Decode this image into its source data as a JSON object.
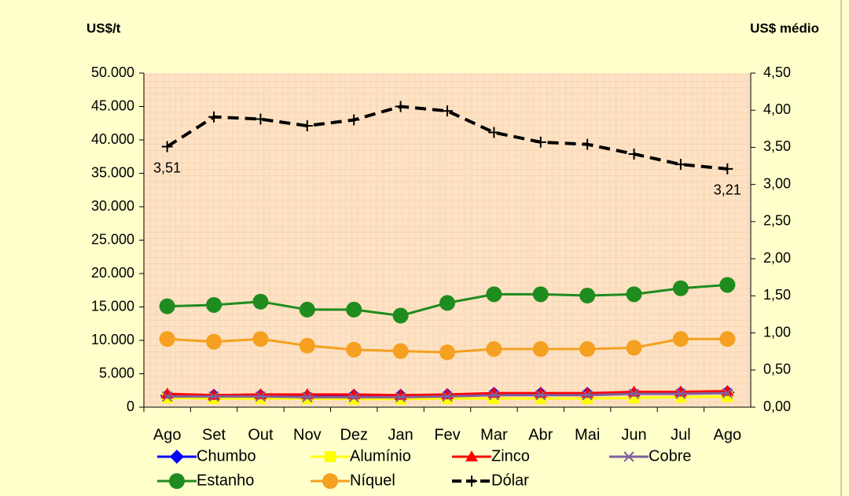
{
  "chart_data": {
    "type": "line",
    "ylabel": "US$/t",
    "y2label": "US$ médio",
    "categories": [
      "Ago",
      "Set",
      "Out",
      "Nov",
      "Dez",
      "Jan",
      "Fev",
      "Mar",
      "Abr",
      "Mai",
      "Jun",
      "Jul",
      "Ago"
    ],
    "ylim": [
      0,
      50000
    ],
    "yticks": [
      0,
      {
        "value": 5000,
        "label": "5.000"
      },
      {
        "value": 10000,
        "label": "10.000"
      },
      {
        "value": 15000,
        "label": "15.000"
      },
      {
        "value": 20000,
        "label": "20.000"
      },
      {
        "value": 25000,
        "label": "25.000"
      },
      {
        "value": 30000,
        "label": "30.000"
      },
      {
        "value": 35000,
        "label": "35.000"
      },
      {
        "value": 40000,
        "label": "40.000"
      },
      {
        "value": 45000,
        "label": "45.000"
      },
      {
        "value": 50000,
        "label": "50.000"
      }
    ],
    "y2lim": [
      0,
      4.5
    ],
    "y2ticks": [
      {
        "value": 0,
        "label": "0,00"
      },
      {
        "value": 0.5,
        "label": "0,50"
      },
      {
        "value": 1,
        "label": "1,00"
      },
      {
        "value": 1.5,
        "label": "1,50"
      },
      {
        "value": 2,
        "label": "2,00"
      },
      {
        "value": 2.5,
        "label": "2,50"
      },
      {
        "value": 3,
        "label": "3,00"
      },
      {
        "value": 3.5,
        "label": "3,50"
      },
      {
        "value": 4,
        "label": "4,00"
      },
      {
        "value": 4.5,
        "label": "4,50"
      }
    ],
    "series": [
      {
        "name": "Chumbo",
        "color": "#0000ff",
        "marker": "diamond",
        "values": [
          1700,
          1700,
          1700,
          1600,
          1700,
          1700,
          1800,
          2000,
          2000,
          2000,
          2000,
          2100,
          2200
        ]
      },
      {
        "name": "Alumínio",
        "color": "#ffff00",
        "marker": "square",
        "values": [
          1400,
          1300,
          1300,
          1300,
          1200,
          1200,
          1300,
          1300,
          1300,
          1300,
          1400,
          1500,
          1600
        ]
      },
      {
        "name": "Zinco",
        "color": "#ff0000",
        "marker": "triangle",
        "values": [
          2000,
          1800,
          1900,
          1900,
          1900,
          1800,
          1900,
          2100,
          2100,
          2100,
          2300,
          2300,
          2400
        ]
      },
      {
        "name": "Cobre",
        "color": "#7f5f9f",
        "marker": "x",
        "values": [
          1600,
          1600,
          1600,
          1500,
          1500,
          1500,
          1600,
          1800,
          1800,
          1800,
          2000,
          2000,
          2100
        ]
      },
      {
        "name": "Estanho",
        "color": "#1e8c1e",
        "marker": "circle",
        "values": [
          15100,
          15300,
          15800,
          14600,
          14600,
          13700,
          15600,
          16900,
          16900,
          16700,
          16900,
          17800,
          18300
        ]
      },
      {
        "name": "Níquel",
        "color": "#f5a020",
        "marker": "circle",
        "values": [
          10200,
          9800,
          10200,
          9200,
          8600,
          8400,
          8200,
          8700,
          8700,
          8700,
          8900,
          10200,
          10200
        ]
      },
      {
        "name": "Dólar",
        "color": "#000000",
        "marker": "plus",
        "dashed": true,
        "axis": "y2",
        "values": [
          3.51,
          3.91,
          3.88,
          3.79,
          3.87,
          4.05,
          3.99,
          3.7,
          3.57,
          3.54,
          3.41,
          3.27,
          3.21
        ],
        "value_labels": [
          "3,51",
          null,
          null,
          null,
          null,
          null,
          null,
          null,
          null,
          null,
          null,
          null,
          "3,21"
        ]
      }
    ]
  }
}
